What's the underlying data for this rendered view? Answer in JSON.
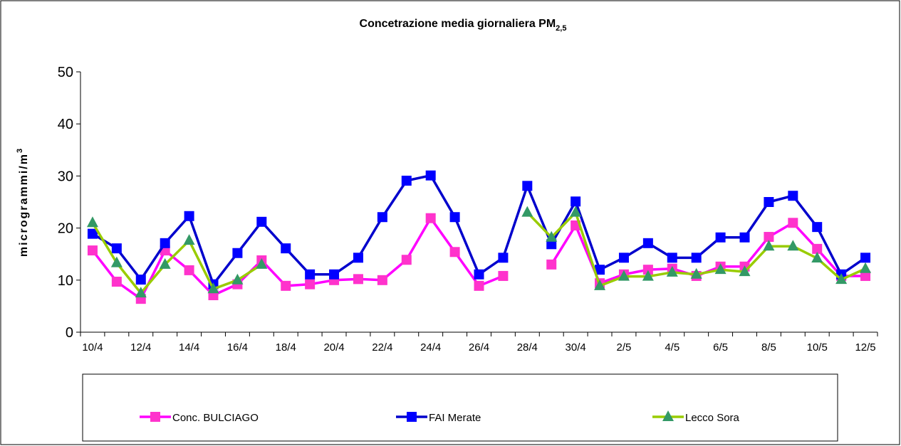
{
  "chart_data": {
    "type": "line",
    "title": "Concetrazione media giornaliera PM",
    "title_subscript": "2,5",
    "y_label": "microgrammi/m",
    "y_label_superscript": "3",
    "categories": [
      "10/4",
      null,
      "12/4",
      null,
      "14/4",
      null,
      "16/4",
      null,
      "18/4",
      null,
      "20/4",
      null,
      "22/4",
      null,
      "24/4",
      null,
      "26/4",
      null,
      "28/4",
      null,
      "30/4",
      null,
      "2/5",
      null,
      "4/5",
      null,
      "6/5",
      null,
      "8/5",
      null,
      "10/5",
      null,
      "12/5"
    ],
    "series": [
      {
        "name": "Conc. BULCIAGO",
        "color": "#ff00ff",
        "marker_color": "#ff33cc",
        "marker": "square",
        "values": [
          15.7,
          9.7,
          6.4,
          15.7,
          11.9,
          7.1,
          9.2,
          13.8,
          8.9,
          9.2,
          10,
          10.2,
          10,
          13.9,
          21.9,
          15.4,
          8.9,
          10.8,
          null,
          13,
          20.5,
          9.4,
          11.1,
          12,
          12.2,
          10.8,
          12.6,
          12.6,
          18.3,
          21,
          16,
          10.8,
          10.8
        ]
      },
      {
        "name": "FAI Merate",
        "color": "#0000cc",
        "marker_color": "#0000ff",
        "marker": "square",
        "values": [
          18.9,
          16.1,
          10.1,
          17.1,
          22.3,
          9.2,
          15.2,
          21.2,
          16.1,
          11.1,
          11.1,
          14.3,
          22.1,
          29.1,
          30.1,
          22.1,
          11.1,
          14.3,
          28.1,
          16.9,
          25.1,
          12,
          14.3,
          17.1,
          14.3,
          14.3,
          18.2,
          18.2,
          25,
          26.2,
          20.2,
          11.1,
          14.3
        ]
      },
      {
        "name": "Lecco Sora",
        "color": "#99cc00",
        "marker_color": "#339966",
        "marker": "triangle",
        "values": [
          21,
          13.3,
          7.5,
          13,
          17.6,
          8.3,
          10,
          13,
          null,
          null,
          null,
          null,
          null,
          null,
          null,
          null,
          null,
          null,
          23,
          18.2,
          23,
          8.9,
          10.7,
          10.7,
          11.5,
          11.1,
          12,
          11.6,
          16.5,
          16.5,
          14.2,
          10.1,
          12.2
        ]
      }
    ],
    "ylim": [
      0,
      50
    ],
    "yticks": [
      0,
      10,
      20,
      30,
      40,
      50
    ],
    "grid": false,
    "legend": "bottom"
  }
}
